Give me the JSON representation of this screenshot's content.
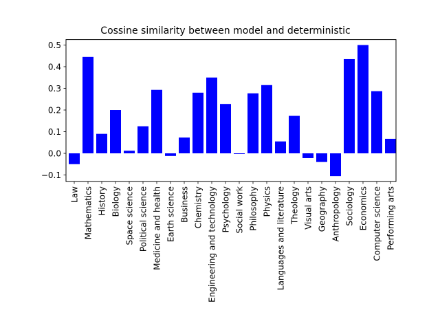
{
  "colors": {
    "bar": "#0000ff",
    "axis": "#000000",
    "background": "#ffffff"
  },
  "chart_data": {
    "type": "bar",
    "title": "Cossine similarity between model and deterministic",
    "xlabel": "",
    "ylabel": "",
    "categories": [
      "Law",
      "Mathematics",
      "History",
      "Biology",
      "Space science",
      "Political science",
      "Medicine and health",
      "Earth science",
      "Business",
      "Chemistry",
      "Engineering and technology",
      "Psychology",
      "Social work",
      "Philosophy",
      "Physics",
      "Languages and literature",
      "Theology",
      "Visual arts",
      "Geography",
      "Anthropology",
      "Sociology",
      "Economics",
      "Computer science",
      "Performing arts"
    ],
    "values": [
      -0.05,
      0.445,
      0.09,
      0.2,
      0.012,
      0.125,
      0.293,
      -0.012,
      0.073,
      0.28,
      0.35,
      0.228,
      -0.003,
      0.277,
      0.315,
      0.055,
      0.173,
      -0.022,
      -0.04,
      -0.105,
      0.435,
      0.5,
      0.287,
      0.067
    ],
    "yticks": [
      "0.5",
      "0.4",
      "0.3",
      "0.2",
      "0.1",
      "0.0",
      "−0.1"
    ],
    "ytick_values": [
      0.5,
      0.4,
      0.3,
      0.2,
      0.1,
      0.0,
      -0.1
    ],
    "ylim": [
      -0.13,
      0.525
    ],
    "grid": false,
    "legend": "none"
  }
}
